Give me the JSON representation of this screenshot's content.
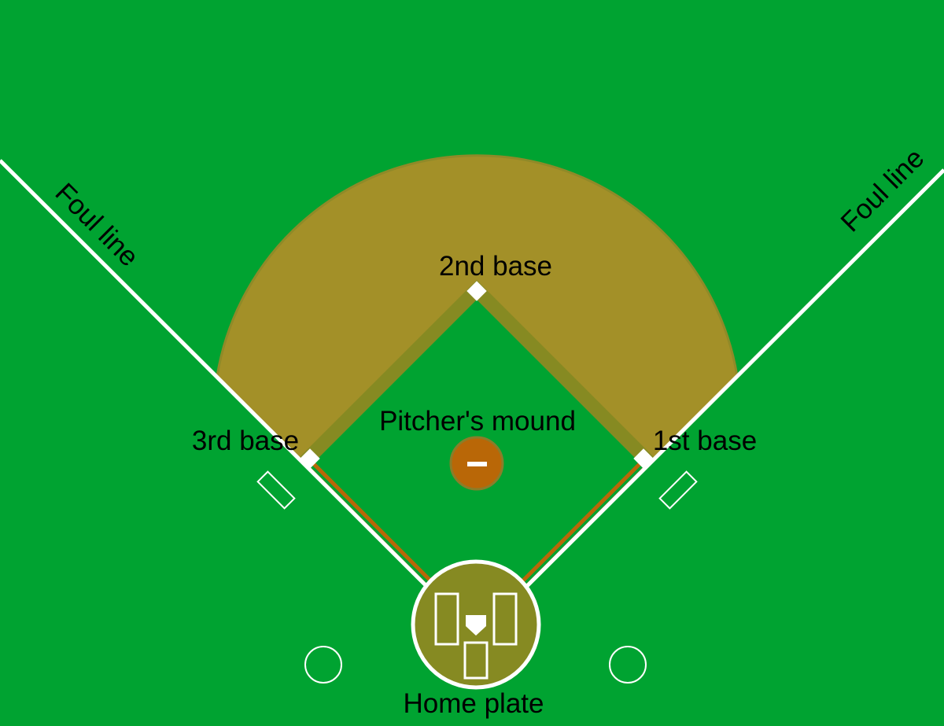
{
  "labels": {
    "second_base": "2nd base",
    "third_base": "3rd base",
    "first_base": "1st base",
    "pitchers_mound": "Pitcher's mound",
    "home_plate": "Home plate",
    "foul_line_left": "Foul line",
    "foul_line_right": "Foul line"
  },
  "colors": {
    "grass": "#00a331",
    "infield_dirt": "#a39028",
    "baseline_dirt": "#868a22",
    "home_dirt": "#868a22",
    "mound": "#b96707",
    "mound_rim": "#8a7d2a",
    "line": "#ffffff"
  }
}
